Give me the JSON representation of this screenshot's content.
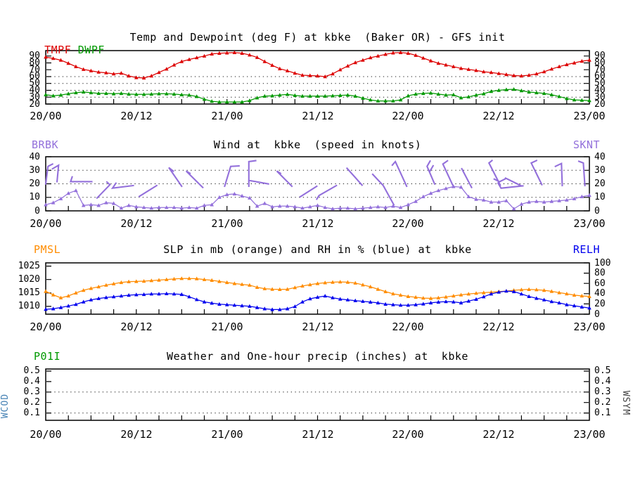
{
  "station": "kbke",
  "station_desc": "(Baker OR)",
  "model": "GFS init",
  "x_axis": {
    "hours_total": 72,
    "minor_tick_step_hours": 3,
    "label_hours": [
      0,
      12,
      24,
      36,
      48,
      60,
      72
    ],
    "labels": [
      "20/00",
      "20/12",
      "21/00",
      "21/12",
      "22/00",
      "22/12",
      "23/00"
    ]
  },
  "chart_data": [
    {
      "type": "line",
      "title": "Temp and Dewpoint (deg F) at kbke  (Baker OR) - GFS init",
      "corner_labels_left": [
        {
          "text": "TMPF",
          "color": "#dd0000"
        },
        {
          "text": "DWPF",
          "color": "#009900"
        }
      ],
      "corner_labels_right": [],
      "y_left": {
        "tick_values": [
          20,
          30,
          40,
          50,
          60,
          70,
          80,
          90
        ],
        "tick_labels": [
          "20",
          "30",
          "40",
          "50",
          "60",
          "70",
          "80",
          "90"
        ],
        "range": [
          20,
          97.9
        ]
      },
      "y_right": {
        "tick_values": [
          20,
          30,
          40,
          50,
          60,
          70,
          80,
          90
        ],
        "tick_labels": [
          "20",
          "30",
          "40",
          "50",
          "60",
          "70",
          "80",
          "90"
        ],
        "range": [
          20,
          97.9
        ]
      },
      "grid_values": [
        30,
        40,
        50,
        60
      ],
      "series": [
        {
          "name": "TMPF",
          "color": "#dd0000",
          "axis": "left",
          "hour_step": 1,
          "values": [
            88.5,
            86.5,
            84,
            79.5,
            74.5,
            70.5,
            68.5,
            66.5,
            65.5,
            64,
            65,
            61,
            58.5,
            58,
            61,
            66,
            71,
            77,
            82,
            85,
            87.5,
            90,
            93,
            94,
            94.5,
            95,
            94,
            91.5,
            88,
            82,
            76.5,
            71.5,
            68.5,
            65,
            62,
            61.5,
            61,
            60,
            64,
            70,
            75.5,
            80.5,
            84,
            87.5,
            90,
            92.5,
            94.5,
            95,
            94,
            91,
            87,
            83,
            79.5,
            77,
            74.5,
            72,
            70.5,
            69,
            67,
            66,
            64.5,
            63,
            61.5,
            61,
            62,
            64,
            67,
            71,
            74.5,
            77.5,
            80,
            82.5,
            84
          ]
        },
        {
          "name": "DWPF",
          "color": "#009900",
          "axis": "left",
          "hour_step": 1,
          "values": [
            33.5,
            32,
            33,
            35,
            36.5,
            37.5,
            36.5,
            35.5,
            35.5,
            35,
            35.5,
            34.5,
            34,
            34,
            34.5,
            35,
            35,
            34.5,
            33.5,
            33,
            31,
            27,
            24,
            23,
            23,
            23,
            23,
            25,
            29,
            31.5,
            32,
            33,
            34,
            32.5,
            31.5,
            31.5,
            31.5,
            31.5,
            32,
            32.5,
            33,
            31.5,
            28.5,
            26,
            24.5,
            24.5,
            24.5,
            26,
            32,
            34.5,
            35.5,
            36,
            34.5,
            33,
            33.5,
            29,
            30.5,
            33,
            35,
            38.5,
            40,
            41,
            41.5,
            39.5,
            37.5,
            36.5,
            35.5,
            33.5,
            31,
            28,
            26,
            25.5,
            25
          ]
        }
      ]
    },
    {
      "type": "line",
      "title": "Wind at  kbke  (speed in knots)",
      "corner_labels_left": [
        {
          "text": "BRBK",
          "color": "#9370db"
        }
      ],
      "corner_labels_right": [
        {
          "text": "SKNT",
          "color": "#9370db"
        }
      ],
      "y_left": {
        "tick_values": [
          0,
          10,
          20,
          30,
          40
        ],
        "tick_labels": [
          "0",
          "10",
          "20",
          "30",
          "40"
        ],
        "range": [
          0,
          40
        ]
      },
      "y_right": {
        "tick_values": [
          0,
          10,
          20,
          30,
          40
        ],
        "tick_labels": [
          "0",
          "10",
          "20",
          "30",
          "40"
        ],
        "range": [
          0,
          40
        ]
      },
      "grid_values": [
        10,
        20,
        30
      ],
      "series": [
        {
          "name": "SKNT",
          "color": "#9370db",
          "axis": "left",
          "hour_step": 1,
          "values": [
            4.5,
            6,
            9,
            13,
            15,
            4,
            4.5,
            4,
            6,
            5.5,
            2,
            4,
            3,
            2.5,
            2,
            2.5,
            2.5,
            2.5,
            2,
            2.5,
            2,
            4,
            4.5,
            10,
            12,
            12.5,
            11,
            9.5,
            3.5,
            5.5,
            3,
            3.5,
            3.5,
            3,
            2,
            3,
            4,
            2.5,
            1.5,
            2,
            2,
            1.5,
            2,
            2.5,
            3,
            2.5,
            3.5,
            2.5,
            4.5,
            7,
            10.5,
            13,
            15,
            16.5,
            18,
            17.5,
            10.5,
            8.5,
            8,
            6.5,
            6.5,
            7.5,
            1.5,
            5,
            6.5,
            7,
            6.5,
            7,
            7.5,
            8,
            9,
            10.5,
            11.5
          ]
        }
      ],
      "wind_barbs_knots": [
        [
          [
            0.0,
            19.9
          ],
          [
            0.3,
            32.9
          ],
          [
            0.9,
            34.6
          ]
        ],
        [
          [
            1.5,
            21.6
          ],
          [
            1.7,
            33.7
          ],
          [
            0.9,
            31.1
          ]
        ],
        [
          [
            6.1,
            21.6
          ],
          [
            3.3,
            21.6
          ],
          [
            3.5,
            25.1
          ]
        ],
        [
          [
            6.8,
            9.5
          ],
          [
            8.5,
            19.3
          ],
          [
            8.1,
            21.3
          ]
        ],
        [
          [
            9.3,
            20.4
          ],
          [
            8.85,
            16.8
          ],
          [
            11.6,
            18.7
          ]
        ],
        [
          [
            12.4,
            10.7
          ],
          [
            14.7,
            18.7
          ]
        ],
        [
          [
            18.0,
            18.2
          ],
          [
            16.3,
            32.0
          ],
          [
            16.9,
            29.4
          ]
        ],
        [
          [
            20.8,
            17.3
          ],
          [
            18.6,
            29.4
          ],
          [
            19.1,
            27.7
          ]
        ],
        [
          [
            23.7,
            18.2
          ],
          [
            24.5,
            32.9
          ],
          [
            25.6,
            33.2
          ]
        ],
        [
          [
            26.9,
            18.2
          ],
          [
            26.9,
            36.4
          ],
          [
            27.8,
            37.1
          ]
        ],
        [
          [
            26.9,
            22.5
          ],
          [
            29.5,
            19.9
          ]
        ],
        [
          [
            32.6,
            18.2
          ],
          [
            30.6,
            29.4
          ],
          [
            31.1,
            27.7
          ]
        ],
        [
          [
            33.7,
            10.4
          ],
          [
            35.9,
            18.2
          ]
        ],
        [
          [
            35.9,
            8.7
          ],
          [
            36.2,
            11.3
          ],
          [
            38.5,
            18.7
          ]
        ],
        [
          [
            39.9,
            31.5
          ],
          [
            41.9,
            19.0
          ]
        ],
        [
          [
            43.3,
            27.0
          ],
          [
            44.7,
            18.7
          ],
          [
            46.1,
            4.5
          ]
        ],
        [
          [
            47.8,
            18.2
          ],
          [
            46.3,
            36.4
          ],
          [
            45.9,
            33.8
          ]
        ],
        [
          [
            51.5,
            19.9
          ],
          [
            50.5,
            32.9
          ],
          [
            50.9,
            36.8
          ]
        ],
        [
          [
            50.9,
            29.5
          ],
          [
            51.3,
            33.3
          ]
        ],
        [
          [
            53.9,
            19.0
          ],
          [
            52.6,
            34.6
          ],
          [
            53.2,
            37.0
          ]
        ],
        [
          [
            56.4,
            17.3
          ],
          [
            55.1,
            31.1
          ]
        ],
        [
          [
            60.2,
            19.0
          ],
          [
            58.7,
            35.4
          ],
          [
            59.1,
            37.2
          ]
        ],
        [
          [
            59.4,
            23.5
          ],
          [
            60.1,
            21.5
          ],
          [
            60.8,
            23.5
          ]
        ],
        [
          [
            59.9,
            20.5
          ],
          [
            60.3,
            16.8
          ],
          [
            63.2,
            18.5
          ]
        ],
        [
          [
            60.9,
            24.2
          ],
          [
            62.9,
            18.7
          ]
        ],
        [
          [
            65.7,
            19.4
          ],
          [
            64.3,
            35.4
          ],
          [
            65.0,
            37.2
          ]
        ],
        [
          [
            68.4,
            18.7
          ],
          [
            68.3,
            35.0
          ],
          [
            67.5,
            32.9
          ]
        ],
        [
          [
            71.4,
            18.7
          ],
          [
            71.2,
            35.4
          ],
          [
            70.6,
            36.6
          ]
        ]
      ]
    },
    {
      "type": "line",
      "title": "SLP in mb (orange) and RH in % (blue) at  kbke",
      "corner_labels_left": [
        {
          "text": "PMSL",
          "color": "#ff8c00"
        }
      ],
      "corner_labels_right": [
        {
          "text": "RELH",
          "color": "#0000ee"
        }
      ],
      "y_left": {
        "tick_values": [
          1010,
          1015,
          1020,
          1025
        ],
        "tick_labels": [
          "1010",
          "1015",
          "1020",
          "1025"
        ],
        "range": [
          1007.1,
          1026.2
        ]
      },
      "y_right": {
        "tick_values": [
          0,
          20,
          40,
          60,
          80,
          100
        ],
        "tick_labels": [
          "0",
          "20",
          "40",
          "60",
          "80",
          "100"
        ],
        "range": [
          0,
          100
        ]
      },
      "grid_values": [],
      "series": [
        {
          "name": "PMSL",
          "color": "#ff8c00",
          "axis": "left",
          "hour_step": 1,
          "values": [
            1015.6,
            1014.3,
            1013.2,
            1013.9,
            1015,
            1016,
            1016.7,
            1017.3,
            1017.9,
            1018.4,
            1018.9,
            1019.2,
            1019.3,
            1019.4,
            1019.6,
            1019.8,
            1020,
            1020.2,
            1020.4,
            1020.4,
            1020.3,
            1020,
            1019.7,
            1019.3,
            1018.9,
            1018.5,
            1018.2,
            1017.9,
            1017.1,
            1016.6,
            1016.4,
            1016.3,
            1016.4,
            1017,
            1017.6,
            1018.1,
            1018.5,
            1018.8,
            1019,
            1019.1,
            1019,
            1018.7,
            1018,
            1017.3,
            1016.4,
            1015.5,
            1014.7,
            1014.2,
            1013.7,
            1013.4,
            1013.1,
            1013,
            1013.2,
            1013.5,
            1013.9,
            1014.3,
            1014.6,
            1014.9,
            1015.1,
            1015.3,
            1015.5,
            1015.7,
            1016,
            1016.2,
            1016.3,
            1016.2,
            1016,
            1015.6,
            1015.1,
            1014.7,
            1014.2,
            1013.9,
            1013.7
          ]
        },
        {
          "name": "RELH",
          "color": "#0000ee",
          "axis": "right",
          "hour_step": 1,
          "values": [
            9.5,
            10.5,
            13,
            16,
            19,
            24,
            28,
            30.5,
            32.5,
            34,
            35.5,
            37,
            38,
            38.5,
            39.5,
            39.5,
            40,
            39.5,
            38.5,
            34,
            28.5,
            24,
            21.5,
            19.5,
            18.5,
            17.5,
            16.5,
            15.5,
            13,
            10.5,
            9,
            9,
            10.5,
            15,
            24,
            30,
            33,
            35.5,
            32,
            29.5,
            28,
            26.5,
            25,
            23.5,
            22,
            19.5,
            18.5,
            17.5,
            17.5,
            18.5,
            20,
            22,
            23.5,
            24.5,
            24,
            22,
            25.5,
            29,
            34,
            39.5,
            43,
            45,
            44,
            39.5,
            34.5,
            31,
            28,
            24.5,
            22,
            18.5,
            16.5,
            14,
            12
          ]
        }
      ]
    },
    {
      "type": "line",
      "title": "Weather and One-hour precip (inches) at  kbke",
      "corner_labels_left": [
        {
          "text": "P01I",
          "color": "#009900"
        }
      ],
      "corner_labels_right": [],
      "side_label_left": {
        "text": "WCOD",
        "color": "#4682b4"
      },
      "side_label_right": {
        "text": "WSYM",
        "color": "#444444"
      },
      "y_left": {
        "tick_values": [
          0.1,
          0.2,
          0.3,
          0.4,
          0.5
        ],
        "tick_labels": [
          "0.1",
          "0.2",
          "0.3",
          "0.4",
          "0.5"
        ],
        "range": [
          0.03,
          0.52
        ]
      },
      "y_right": {
        "tick_values": [
          0.1,
          0.2,
          0.3,
          0.4,
          0.5
        ],
        "tick_labels": [
          "0.1",
          "0.2",
          "0.3",
          "0.4",
          "0.5"
        ],
        "range": [
          0.03,
          0.52
        ]
      },
      "grid_values": [
        0.1,
        0.3
      ],
      "series": []
    }
  ]
}
